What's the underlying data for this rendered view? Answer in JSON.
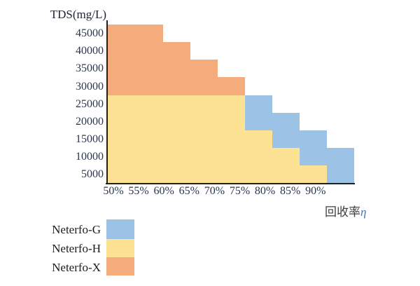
{
  "title": "TDS(mg/L)",
  "x_axis_title": {
    "text": "回收率",
    "symbol": "η"
  },
  "legend": {
    "items": [
      {
        "label": "Neterfo-G",
        "color": "#9CC2E5"
      },
      {
        "label": "Neterfo-H",
        "color": "#FDE294"
      },
      {
        "label": "Neterfo-X",
        "color": "#F4AC7D"
      }
    ]
  },
  "chart_data": {
    "type": "area",
    "subtype": "stacked-step-staircase",
    "title": "TDS(mg/L)",
    "xlabel": "回收率η",
    "ylabel": "TDS(mg/L)",
    "x_categories": [
      "50%",
      "55%",
      "60%",
      "65%",
      "70%",
      "75%",
      "80%",
      "85%",
      "90%"
    ],
    "y_categories": [
      "45000",
      "40000",
      "35000",
      "30000",
      "25000",
      "20000",
      "15000",
      "10000",
      "5000"
    ],
    "grid_on": false,
    "legend_position": "bottom-left",
    "series_colors": {
      "Neterfo-G": "#9CC2E5",
      "Neterfo-H": "#FDE294",
      "Neterfo-X": "#F4AC7D"
    },
    "rows": [
      {
        "tds": "45000",
        "segments": [
          {
            "series": "Neterfo-X",
            "start": 0,
            "span": 2
          }
        ]
      },
      {
        "tds": "40000",
        "segments": [
          {
            "series": "Neterfo-X",
            "start": 0,
            "span": 3
          }
        ]
      },
      {
        "tds": "35000",
        "segments": [
          {
            "series": "Neterfo-X",
            "start": 0,
            "span": 4
          }
        ]
      },
      {
        "tds": "30000",
        "segments": [
          {
            "series": "Neterfo-X",
            "start": 0,
            "span": 5
          }
        ]
      },
      {
        "tds": "25000",
        "segments": [
          {
            "series": "Neterfo-H",
            "start": 0,
            "span": 5
          },
          {
            "series": "Neterfo-G",
            "start": 5,
            "span": 1
          }
        ]
      },
      {
        "tds": "20000",
        "segments": [
          {
            "series": "Neterfo-H",
            "start": 0,
            "span": 5
          },
          {
            "series": "Neterfo-G",
            "start": 5,
            "span": 2
          }
        ]
      },
      {
        "tds": "15000",
        "segments": [
          {
            "series": "Neterfo-H",
            "start": 0,
            "span": 6
          },
          {
            "series": "Neterfo-G",
            "start": 6,
            "span": 2
          }
        ]
      },
      {
        "tds": "10000",
        "segments": [
          {
            "series": "Neterfo-H",
            "start": 0,
            "span": 7
          },
          {
            "series": "Neterfo-G",
            "start": 7,
            "span": 2
          }
        ]
      },
      {
        "tds": "5000",
        "segments": [
          {
            "series": "Neterfo-H",
            "start": 0,
            "span": 8
          },
          {
            "series": "Neterfo-G",
            "start": 8,
            "span": 1
          }
        ]
      }
    ]
  }
}
